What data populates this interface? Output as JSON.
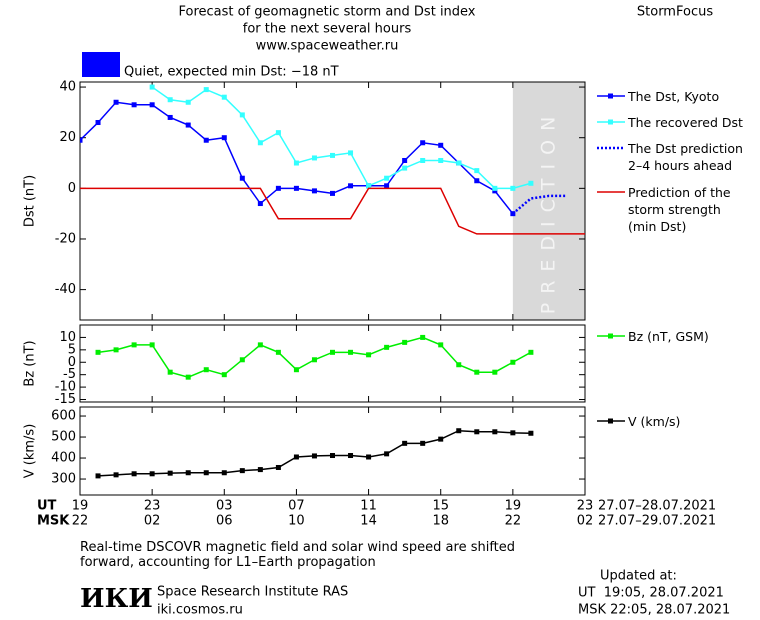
{
  "header": {
    "title": "Forecast of geomagnetic storm and Dst index",
    "subtitle": "for the next several hours",
    "site": "www.spaceweather.ru",
    "brand": "StormFocus"
  },
  "status": {
    "label": "Quiet, expected min Dst: −18 nT",
    "color": "#0000ff"
  },
  "chart_data": [
    {
      "type": "line",
      "ylabel": "Dst (nT)",
      "xlim": [
        0,
        28
      ],
      "ylim": [
        -52,
        42
      ],
      "yticks": [
        40,
        20,
        0,
        -20,
        -40
      ],
      "prediction_zone": {
        "xlim": [
          24,
          28
        ],
        "label": "PREDICTION"
      },
      "series": [
        {
          "name": "The Dst, Kyoto",
          "color": "#0000ff",
          "marker": true,
          "x": [
            0,
            1,
            2,
            3,
            4,
            5,
            6,
            7,
            8,
            9,
            10,
            11,
            12,
            13,
            14,
            15,
            16,
            17,
            18,
            19,
            20,
            21,
            22,
            23,
            24
          ],
          "values": [
            19,
            26,
            34,
            33,
            33,
            28,
            25,
            19,
            20,
            4,
            -6,
            0,
            0,
            -1,
            -2,
            1,
            1,
            1,
            11,
            18,
            17,
            10,
            3,
            -1,
            -10
          ]
        },
        {
          "name": "The recovered Dst",
          "color": "#33ffff",
          "marker": true,
          "x": [
            4,
            5,
            6,
            7,
            8,
            9,
            10,
            11,
            12,
            13,
            14,
            15,
            16,
            17,
            18,
            19,
            20,
            21,
            22,
            23,
            24,
            25
          ],
          "values": [
            40,
            35,
            34,
            39,
            36,
            29,
            18,
            22,
            10,
            12,
            13,
            14,
            1,
            4,
            8,
            11,
            11,
            10,
            7,
            0,
            0,
            2
          ]
        },
        {
          "name": "The Dst prediction\n2–4 hours ahead",
          "color": "#0000ff",
          "marker": false,
          "dotted": true,
          "x": [
            24,
            25,
            26,
            27
          ],
          "values": [
            -10,
            -4,
            -3,
            -3
          ]
        },
        {
          "name": "Prediction of the\nstorm strength\n(min Dst)",
          "color": "#dd0000",
          "marker": false,
          "x": [
            0,
            10,
            11,
            15,
            16,
            20,
            21,
            22,
            28
          ],
          "values": [
            0,
            0,
            -12,
            -12,
            0,
            0,
            -15,
            -18,
            -18
          ]
        }
      ]
    },
    {
      "type": "line",
      "ylabel": "Bz (nT)",
      "xlim": [
        0,
        28
      ],
      "ylim": [
        -16,
        15
      ],
      "yticks": [
        10,
        5,
        0,
        -5,
        -10,
        -15
      ],
      "series": [
        {
          "name": "Bz (nT, GSM)",
          "color": "#00ee00",
          "marker": true,
          "x": [
            1,
            2,
            3,
            4,
            5,
            6,
            7,
            8,
            9,
            10,
            11,
            12,
            13,
            14,
            15,
            16,
            17,
            18,
            19,
            20,
            21,
            22,
            23,
            24,
            25
          ],
          "values": [
            4,
            5,
            7,
            7,
            -4,
            -6,
            -3,
            -5,
            1,
            7,
            4,
            -3,
            1,
            4,
            4,
            3,
            6,
            8,
            10,
            7,
            -1,
            -4,
            -4,
            0,
            4
          ]
        }
      ]
    },
    {
      "type": "line",
      "ylabel": "V (km/s)",
      "xlim": [
        0,
        28
      ],
      "ylim": [
        224,
        643
      ],
      "yticks": [
        600,
        500,
        400,
        300
      ],
      "xticks": [
        {
          "value": 0,
          "label": "19"
        },
        {
          "value": 4,
          "label": "23"
        },
        {
          "value": 8,
          "label": "03"
        },
        {
          "value": 12,
          "label": "07"
        },
        {
          "value": 16,
          "label": "11"
        },
        {
          "value": 20,
          "label": "15"
        },
        {
          "value": 24,
          "label": "19"
        },
        {
          "value": 28,
          "label": "23"
        }
      ],
      "xticks_msk": [
        "22",
        "02",
        "06",
        "10",
        "14",
        "18",
        "22",
        "02"
      ],
      "x_row_labels": [
        "UT",
        "MSK"
      ],
      "x_ranges": [
        "27.07–28.07.2021",
        "27.07–29.07.2021"
      ],
      "series": [
        {
          "name": "V (km/s)",
          "color": "#000000",
          "marker": true,
          "x": [
            1,
            2,
            3,
            4,
            5,
            6,
            7,
            8,
            9,
            10,
            11,
            12,
            13,
            14,
            15,
            16,
            17,
            18,
            19,
            20,
            21,
            22,
            23,
            24,
            25
          ],
          "values": [
            315,
            320,
            325,
            325,
            328,
            330,
            330,
            330,
            340,
            345,
            355,
            405,
            410,
            412,
            412,
            405,
            420,
            470,
            470,
            490,
            530,
            525,
            525,
            520,
            518
          ]
        }
      ]
    }
  ],
  "footer": {
    "note": "Real-time DSCOVR magnetic field and solar wind speed are shifted\nforward, accounting for L1–Earth propagation",
    "logo": "ИКИ",
    "institute": "Space Research Institute RAS",
    "url": "iki.cosmos.ru",
    "updated": "Updated at:",
    "updated_ut": "UT  19:05, 28.07.2021",
    "updated_msk": "MSK 22:05, 28.07.2021"
  }
}
